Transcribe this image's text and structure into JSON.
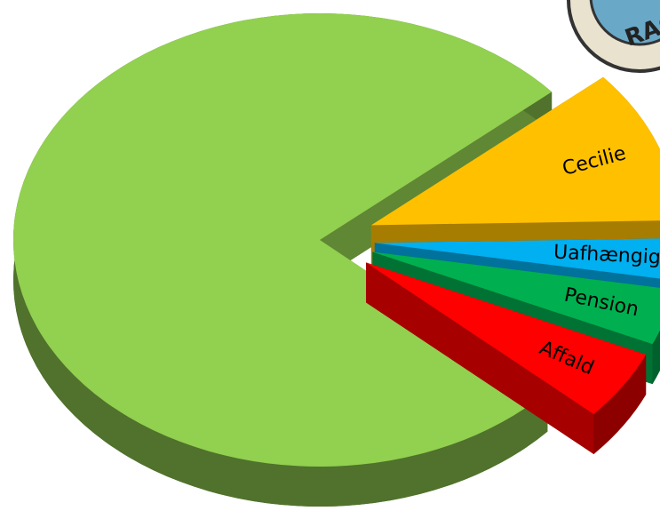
{
  "chart_data": {
    "type": "pie",
    "categories": [
      null,
      "Cecilie",
      "Uafhængige",
      "Pension",
      "Affald"
    ],
    "values": [
      77,
      11,
      3,
      4,
      5
    ],
    "colors": [
      "#92d050",
      "#ffc000",
      "#00b0f0",
      "#00b050",
      "#ff0000"
    ]
  },
  "logo": {
    "text": "RAGE"
  }
}
